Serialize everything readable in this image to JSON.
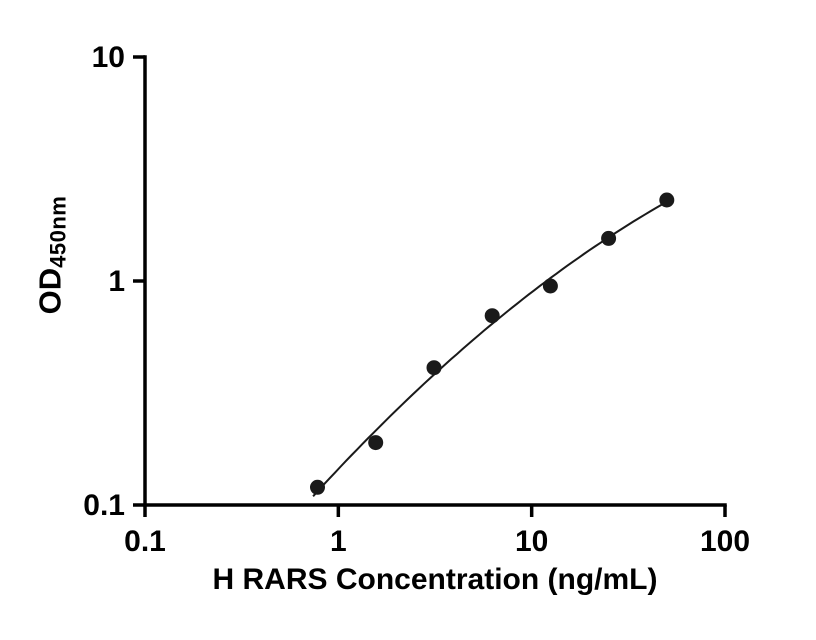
{
  "figure": {
    "background": "#ffffff"
  },
  "chart_data": {
    "type": "scatter",
    "title": "",
    "xlabel": "H RARS Concentration (ng/mL)",
    "ylabel": "OD",
    "ylabel_sub": "450nm",
    "x_scale": "log",
    "y_scale": "log",
    "xlim": [
      0.1,
      100
    ],
    "ylim": [
      0.1,
      10
    ],
    "x": [
      0.78,
      1.56,
      3.125,
      6.25,
      12.5,
      25,
      50
    ],
    "y": [
      0.12,
      0.19,
      0.41,
      0.7,
      0.95,
      1.55,
      2.3
    ],
    "x_ticks": [
      {
        "v": 0.1,
        "label": "0.1"
      },
      {
        "v": 1,
        "label": "1"
      },
      {
        "v": 10,
        "label": "10"
      },
      {
        "v": 100,
        "label": "100"
      }
    ],
    "y_ticks": [
      {
        "v": 0.1,
        "label": "0.1"
      },
      {
        "v": 1,
        "label": "1"
      },
      {
        "v": 10,
        "label": "10"
      }
    ],
    "fit": "log-log quadratic standard curve",
    "fit_range": [
      0.74,
      50
    ],
    "grid": false,
    "legend": null,
    "axis_color": "#000000",
    "point_color": "#1a1a1a",
    "line_color": "#1a1a1a",
    "point_radius": 7.5,
    "line_width": 2,
    "axis_width": 3.5,
    "tick_length": 12
  }
}
